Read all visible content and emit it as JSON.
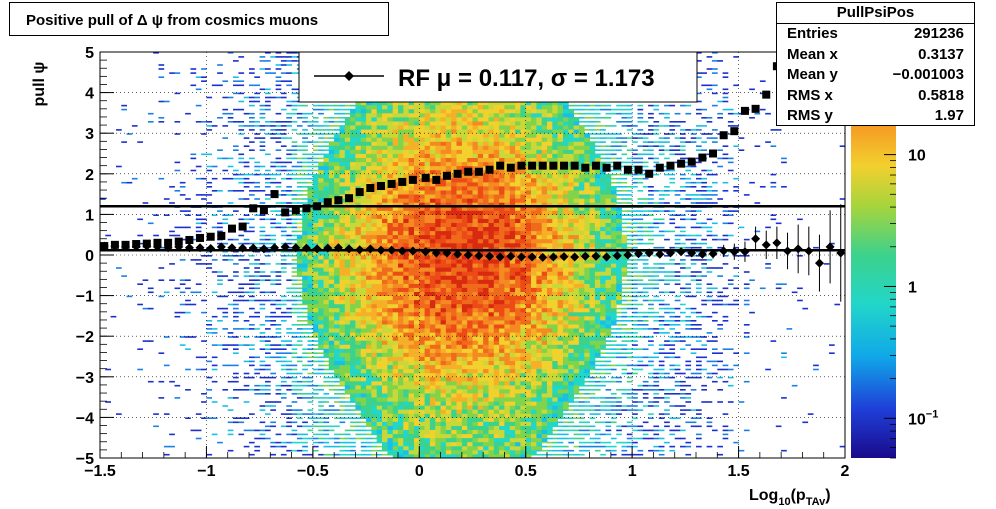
{
  "title": "Positive pull of Δ ψ from cosmics muons",
  "stats": {
    "name": "PullPsiPos",
    "rows": [
      {
        "label": "Entries",
        "value": "291236"
      },
      {
        "label": "Mean x",
        "value": "0.3137"
      },
      {
        "label": "Mean y",
        "value": "−0.001003"
      },
      {
        "label": "RMS x",
        "value": "0.5818"
      },
      {
        "label": "RMS y",
        "value": "1.97"
      }
    ]
  },
  "legend": {
    "text": "RF μ =  0.117, σ =   1.173"
  },
  "colors": {
    "marker": "#000000",
    "fit_line": "#000000"
  },
  "chart_data": {
    "type": "heatmap",
    "xlabel": "Log",
    "xlabel_sub": "10",
    "xlabel_mid": "(p",
    "xlabel_sub2": "TAv",
    "xlabel_end": ")",
    "ylabel": "pull ψ",
    "xlim": [
      -1.5,
      2
    ],
    "ylim": [
      -5,
      5
    ],
    "x_ticks": [
      "−1.5",
      "−1",
      "−0.5",
      "0",
      "0.5",
      "1",
      "1.5",
      "2"
    ],
    "x_tick_values": [
      -1.5,
      -1,
      -0.5,
      0,
      0.5,
      1,
      1.5,
      2
    ],
    "y_ticks": [
      "−5",
      "−4",
      "−3",
      "−2",
      "−1",
      "0",
      "1",
      "2",
      "3",
      "4",
      "5"
    ],
    "y_tick_values": [
      -5,
      -4,
      -3,
      -2,
      -1,
      0,
      1,
      2,
      3,
      4,
      5
    ],
    "grid": true,
    "z_scale": "log",
    "z_range": [
      0.05,
      60
    ],
    "z_ticks": [
      {
        "label": "10",
        "sup": "−1",
        "value": 0.1
      },
      {
        "label": "1",
        "sup": "",
        "value": 1
      },
      {
        "label": "10",
        "sup": "",
        "value": 10
      }
    ],
    "fit_lines": [
      1.2,
      0.117
    ],
    "rms_series": {
      "x": [
        -1.48,
        -1.43,
        -1.38,
        -1.33,
        -1.28,
        -1.23,
        -1.18,
        -1.13,
        -1.08,
        -1.03,
        -0.98,
        -0.93,
        -0.88,
        -0.83,
        -0.78,
        -0.73,
        -0.68,
        -0.63,
        -0.58,
        -0.53,
        -0.48,
        -0.43,
        -0.38,
        -0.33,
        -0.28,
        -0.23,
        -0.18,
        -0.13,
        -0.08,
        -0.03,
        0.03,
        0.08,
        0.13,
        0.18,
        0.23,
        0.28,
        0.33,
        0.38,
        0.43,
        0.48,
        0.53,
        0.58,
        0.63,
        0.68,
        0.73,
        0.78,
        0.83,
        0.88,
        0.93,
        0.98,
        1.03,
        1.08,
        1.13,
        1.18,
        1.23,
        1.28,
        1.33,
        1.38,
        1.43,
        1.48,
        1.53,
        1.58,
        1.63,
        1.68,
        1.73
      ],
      "y": [
        0.22,
        0.25,
        0.25,
        0.27,
        0.28,
        0.3,
        0.3,
        0.33,
        0.37,
        0.42,
        0.45,
        0.47,
        0.65,
        0.7,
        1.15,
        1.1,
        1.5,
        1.05,
        1.1,
        1.15,
        1.2,
        1.3,
        1.35,
        1.4,
        1.55,
        1.65,
        1.7,
        1.75,
        1.8,
        1.85,
        1.9,
        1.85,
        1.95,
        2.0,
        2.05,
        2.05,
        2.1,
        2.2,
        2.15,
        2.2,
        2.2,
        2.2,
        2.2,
        2.2,
        2.2,
        2.15,
        2.2,
        2.15,
        2.2,
        2.1,
        2.1,
        2.0,
        2.15,
        2.2,
        2.25,
        2.3,
        2.4,
        2.5,
        2.95,
        3.05,
        3.55,
        3.6,
        3.95,
        4.65,
        4.8
      ]
    },
    "mean_series": {
      "x": [
        -1.48,
        -1.43,
        -1.38,
        -1.33,
        -1.28,
        -1.23,
        -1.18,
        -1.13,
        -1.08,
        -1.03,
        -0.98,
        -0.93,
        -0.88,
        -0.83,
        -0.78,
        -0.73,
        -0.68,
        -0.63,
        -0.58,
        -0.53,
        -0.48,
        -0.43,
        -0.38,
        -0.33,
        -0.28,
        -0.23,
        -0.18,
        -0.13,
        -0.08,
        -0.03,
        0.03,
        0.08,
        0.13,
        0.18,
        0.23,
        0.28,
        0.33,
        0.38,
        0.43,
        0.48,
        0.53,
        0.58,
        0.63,
        0.68,
        0.73,
        0.78,
        0.83,
        0.88,
        0.93,
        0.98,
        1.03,
        1.08,
        1.13,
        1.18,
        1.23,
        1.28,
        1.33,
        1.38,
        1.43,
        1.48,
        1.53,
        1.58,
        1.63,
        1.68,
        1.73,
        1.78,
        1.83,
        1.88,
        1.93,
        1.98
      ],
      "y": [
        0.22,
        0.22,
        0.2,
        0.21,
        0.22,
        0.2,
        0.18,
        0.2,
        0.18,
        0.18,
        0.16,
        0.2,
        0.18,
        0.17,
        0.17,
        0.15,
        0.18,
        0.2,
        0.18,
        0.17,
        0.15,
        0.17,
        0.18,
        0.15,
        0.13,
        0.15,
        0.12,
        0.12,
        0.1,
        0.1,
        0.08,
        0.05,
        0.05,
        0.02,
        0.0,
        -0.02,
        -0.03,
        -0.05,
        -0.03,
        -0.05,
        -0.05,
        -0.06,
        -0.05,
        -0.04,
        -0.05,
        -0.03,
        -0.03,
        -0.05,
        -0.02,
        0.0,
        0.03,
        0.05,
        0.02,
        0.05,
        0.08,
        0.05,
        0.02,
        0.03,
        0.1,
        0.08,
        0.08,
        0.4,
        0.25,
        0.3,
        0.1,
        0.15,
        0.1,
        -0.2,
        0.2,
        0.05
      ],
      "err": [
        0.05,
        0.05,
        0.05,
        0.04,
        0.04,
        0.04,
        0.04,
        0.04,
        0.04,
        0.04,
        0.04,
        0.04,
        0.04,
        0.04,
        0.04,
        0.04,
        0.04,
        0.04,
        0.03,
        0.03,
        0.03,
        0.03,
        0.03,
        0.03,
        0.03,
        0.03,
        0.03,
        0.03,
        0.03,
        0.03,
        0.03,
        0.03,
        0.03,
        0.03,
        0.03,
        0.03,
        0.03,
        0.03,
        0.03,
        0.03,
        0.03,
        0.03,
        0.03,
        0.03,
        0.03,
        0.04,
        0.04,
        0.04,
        0.04,
        0.05,
        0.05,
        0.05,
        0.06,
        0.06,
        0.07,
        0.08,
        0.1,
        0.12,
        0.15,
        0.2,
        0.25,
        0.3,
        0.35,
        0.4,
        0.45,
        0.6,
        0.6,
        0.7,
        0.9,
        1.2
      ]
    }
  }
}
